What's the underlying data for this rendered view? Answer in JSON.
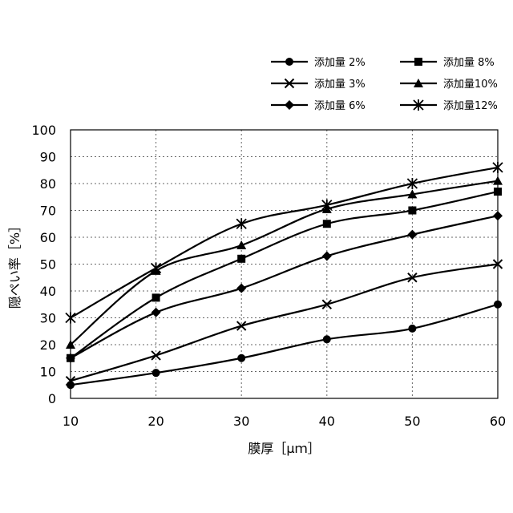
{
  "chart_data": {
    "type": "line",
    "xlabel": "膜厚［μｍ］",
    "ylabel": "隠ぺい率［%］",
    "xlim": [
      10,
      60
    ],
    "ylim": [
      0,
      100
    ],
    "x_ticks": [
      10,
      20,
      30,
      40,
      50,
      60
    ],
    "y_ticks": [
      0,
      10,
      20,
      30,
      40,
      50,
      60,
      70,
      80,
      90,
      100
    ],
    "grid": "dotted",
    "legend_position": "top-right",
    "x": [
      10,
      20,
      30,
      40,
      50,
      60
    ],
    "series": [
      {
        "name": "添加量 2%",
        "marker": "circle",
        "values": [
          5,
          9.5,
          15,
          22,
          26,
          35
        ]
      },
      {
        "name": "添加量 3%",
        "marker": "x",
        "values": [
          6.5,
          16,
          27,
          35,
          45,
          50
        ]
      },
      {
        "name": "添加量 6%",
        "marker": "diamond",
        "values": [
          15,
          32,
          41,
          53,
          61,
          68
        ]
      },
      {
        "name": "添加量 8%",
        "marker": "square",
        "values": [
          15,
          37.5,
          52,
          65,
          70,
          77
        ]
      },
      {
        "name": "添加量10%",
        "marker": "triangle",
        "values": [
          20,
          47.5,
          57,
          70.5,
          76,
          81
        ]
      },
      {
        "name": "添加量12%",
        "marker": "star",
        "values": [
          30,
          48.5,
          65,
          72,
          80,
          86
        ]
      }
    ]
  }
}
